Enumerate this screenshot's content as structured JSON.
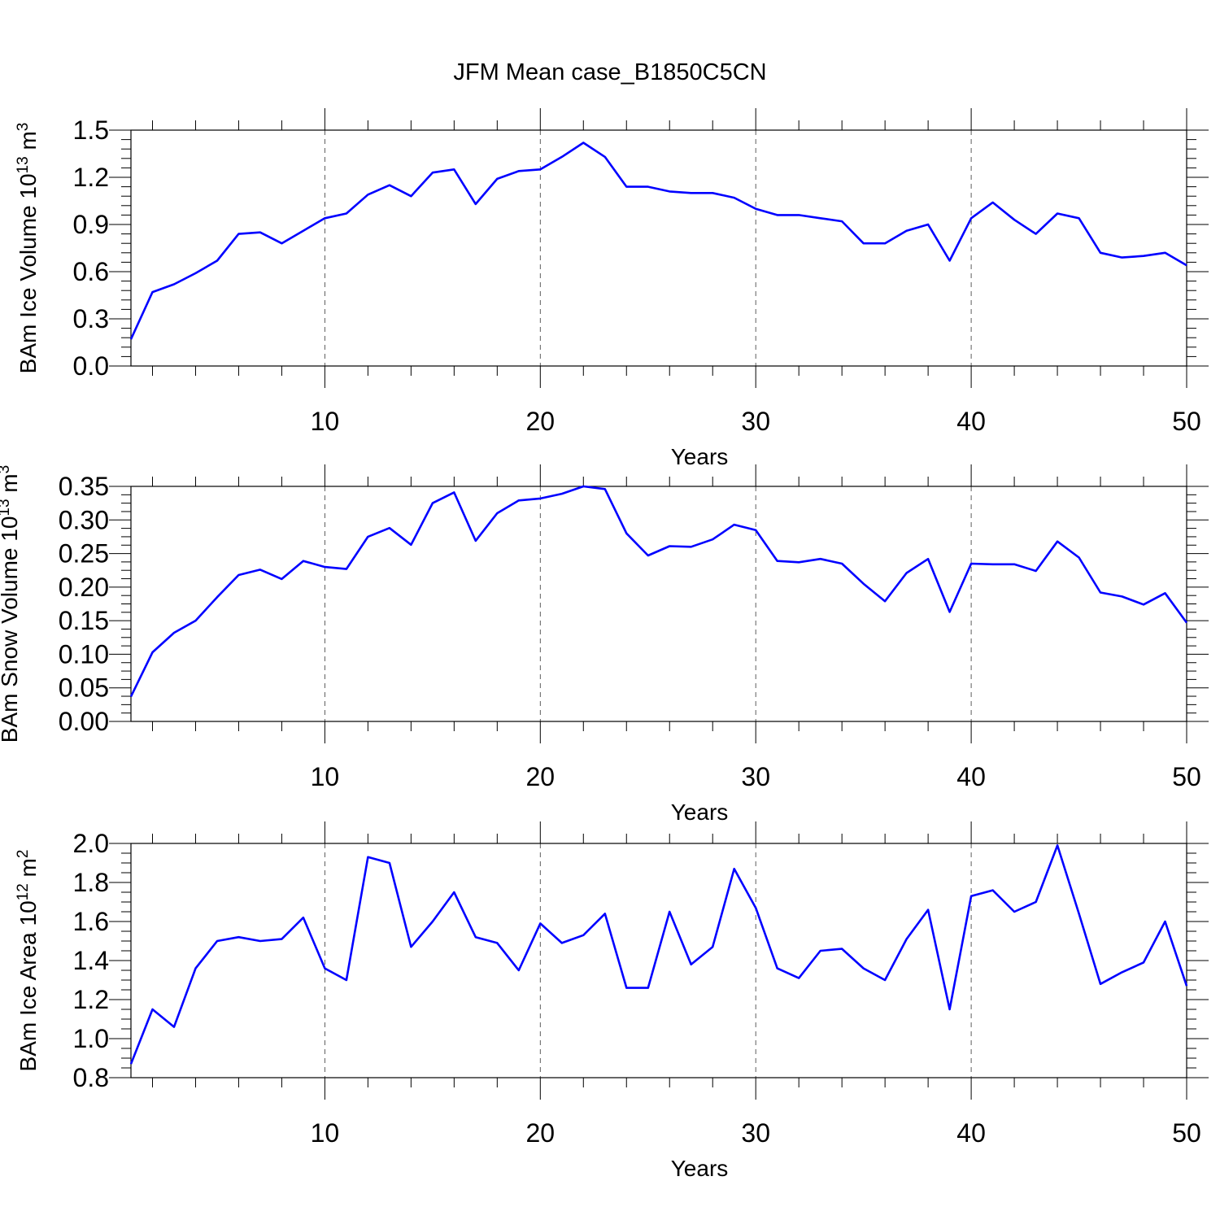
{
  "title": "JFM Mean case_B1850C5CN",
  "chart_data": [
    {
      "type": "line",
      "xlabel": "Years",
      "ylabel_main": "BAm Ice Volume 10",
      "ylabel_exp": "13",
      "ylabel_unit": " m",
      "ylabel_unit_exp": "3",
      "xlim": [
        1,
        50
      ],
      "ylim": [
        0.0,
        1.5
      ],
      "xticks": [
        "10",
        "20",
        "30",
        "40",
        "50"
      ],
      "yticks": [
        "0.0",
        "0.3",
        "0.6",
        "0.9",
        "1.2",
        "1.5"
      ],
      "grid": "vertical-dashed",
      "color": "#0000ff",
      "x": [
        1,
        2,
        3,
        4,
        5,
        6,
        7,
        8,
        9,
        10,
        11,
        12,
        13,
        14,
        15,
        16,
        17,
        18,
        19,
        20,
        21,
        22,
        23,
        24,
        25,
        26,
        27,
        28,
        29,
        30,
        31,
        32,
        33,
        34,
        35,
        36,
        37,
        38,
        39,
        40,
        41,
        42,
        43,
        44,
        45,
        46,
        47,
        48,
        49,
        50
      ],
      "values": [
        0.17,
        0.47,
        0.52,
        0.59,
        0.67,
        0.84,
        0.85,
        0.78,
        0.86,
        0.94,
        0.97,
        1.09,
        1.15,
        1.08,
        1.23,
        1.25,
        1.03,
        1.19,
        1.24,
        1.25,
        1.33,
        1.42,
        1.33,
        1.14,
        1.14,
        1.11,
        1.1,
        1.1,
        1.07,
        1.0,
        0.96,
        0.96,
        0.94,
        0.92,
        0.78,
        0.78,
        0.86,
        0.9,
        0.67,
        0.94,
        1.04,
        0.93,
        0.84,
        0.97,
        0.94,
        0.72,
        0.69,
        0.7,
        0.72,
        0.64
      ]
    },
    {
      "type": "line",
      "xlabel": "Years",
      "ylabel_main": "BAm Snow Volume 10",
      "ylabel_exp": "13",
      "ylabel_unit": " m",
      "ylabel_unit_exp": "3",
      "xlim": [
        1,
        50
      ],
      "ylim": [
        0.0,
        0.35
      ],
      "xticks": [
        "10",
        "20",
        "30",
        "40",
        "50"
      ],
      "yticks": [
        "0.00",
        "0.05",
        "0.10",
        "0.15",
        "0.20",
        "0.25",
        "0.30",
        "0.35"
      ],
      "grid": "vertical-dashed",
      "color": "#0000ff",
      "x": [
        1,
        2,
        3,
        4,
        5,
        6,
        7,
        8,
        9,
        10,
        11,
        12,
        13,
        14,
        15,
        16,
        17,
        18,
        19,
        20,
        21,
        22,
        23,
        24,
        25,
        26,
        27,
        28,
        29,
        30,
        31,
        32,
        33,
        34,
        35,
        36,
        37,
        38,
        39,
        40,
        41,
        42,
        43,
        44,
        45,
        46,
        47,
        48,
        49,
        50
      ],
      "values": [
        0.037,
        0.103,
        0.132,
        0.15,
        0.185,
        0.218,
        0.226,
        0.212,
        0.239,
        0.23,
        0.227,
        0.275,
        0.288,
        0.263,
        0.325,
        0.341,
        0.269,
        0.31,
        0.329,
        0.332,
        0.339,
        0.35,
        0.346,
        0.28,
        0.247,
        0.261,
        0.26,
        0.271,
        0.293,
        0.285,
        0.239,
        0.237,
        0.242,
        0.235,
        0.205,
        0.179,
        0.221,
        0.242,
        0.163,
        0.235,
        0.234,
        0.234,
        0.224,
        0.268,
        0.244,
        0.192,
        0.186,
        0.174,
        0.191,
        0.147
      ]
    },
    {
      "type": "line",
      "xlabel": "Years",
      "ylabel_main": "BAm Ice Area 10",
      "ylabel_exp": "12",
      "ylabel_unit": " m",
      "ylabel_unit_exp": "2",
      "xlim": [
        1,
        50
      ],
      "ylim": [
        0.8,
        2.0
      ],
      "xticks": [
        "10",
        "20",
        "30",
        "40",
        "50"
      ],
      "yticks": [
        "0.8",
        "1.0",
        "1.2",
        "1.4",
        "1.6",
        "1.8",
        "2.0"
      ],
      "grid": "vertical-dashed",
      "color": "#0000ff",
      "x": [
        1,
        2,
        3,
        4,
        5,
        6,
        7,
        8,
        9,
        10,
        11,
        12,
        13,
        14,
        15,
        16,
        17,
        18,
        19,
        20,
        21,
        22,
        23,
        24,
        25,
        26,
        27,
        28,
        29,
        30,
        31,
        32,
        33,
        34,
        35,
        36,
        37,
        38,
        39,
        40,
        41,
        42,
        43,
        44,
        45,
        46,
        47,
        48,
        49,
        50
      ],
      "values": [
        0.87,
        1.15,
        1.06,
        1.36,
        1.5,
        1.52,
        1.5,
        1.51,
        1.62,
        1.36,
        1.3,
        1.93,
        1.9,
        1.47,
        1.6,
        1.75,
        1.52,
        1.49,
        1.35,
        1.59,
        1.49,
        1.53,
        1.64,
        1.26,
        1.26,
        1.65,
        1.38,
        1.47,
        1.87,
        1.67,
        1.36,
        1.31,
        1.45,
        1.46,
        1.36,
        1.3,
        1.51,
        1.66,
        1.15,
        1.73,
        1.76,
        1.65,
        1.7,
        1.99,
        1.64,
        1.28,
        1.34,
        1.39,
        1.6,
        1.27
      ]
    }
  ]
}
